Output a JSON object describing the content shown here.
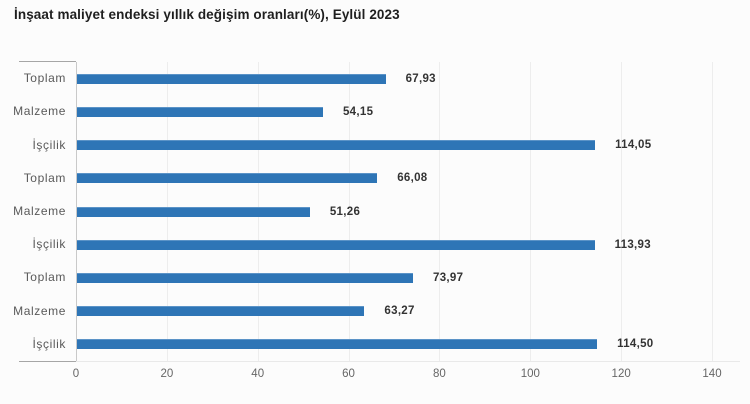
{
  "chart_data": {
    "type": "bar",
    "orientation": "horizontal",
    "title": "İnşaat maliyet endeksi yıllık değişim oranları(%), Eylül 2023",
    "categories": [
      "Toplam",
      "Malzeme",
      "İşçilik",
      "Toplam",
      "Malzeme",
      "İşçilik",
      "Toplam",
      "Malzeme",
      "İşçilik"
    ],
    "values": [
      67.93,
      54.15,
      114.05,
      66.08,
      51.26,
      113.93,
      73.97,
      63.27,
      114.5
    ],
    "value_labels": [
      "67,93",
      "54,15",
      "114,05",
      "66,08",
      "51,26",
      "113,93",
      "73,97",
      "63,27",
      "114,50"
    ],
    "xlabel": "",
    "ylabel": "",
    "xlim": [
      0,
      140
    ],
    "x_ticks": [
      0,
      20,
      40,
      60,
      80,
      100,
      120,
      140
    ],
    "grid": true,
    "legend": "none",
    "bar_color": "#2e75b6",
    "background_color": "#fcfcfc"
  }
}
